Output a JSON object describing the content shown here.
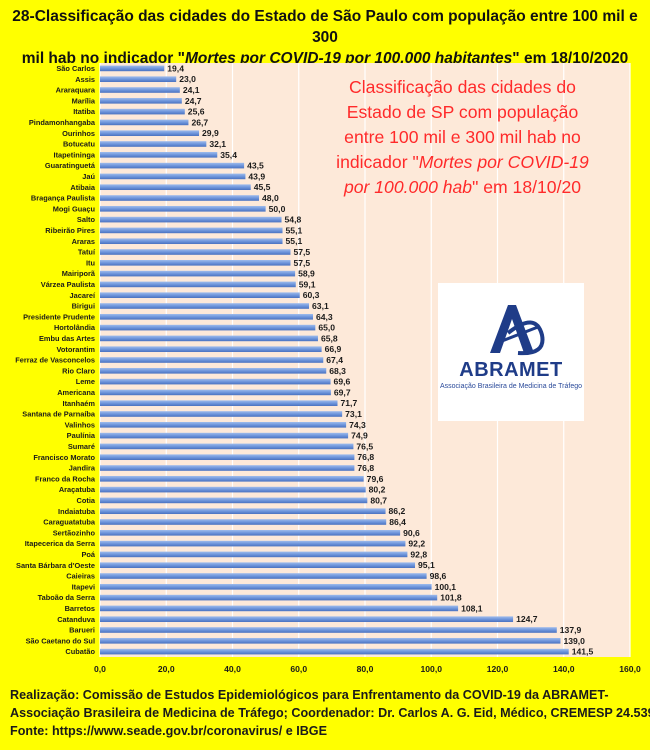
{
  "title_line1": "28-Classificação das cidades do Estado de São Paulo com população entre 100 mil e 300",
  "title_line2_pre": "mil hab no indicador \"",
  "title_line2_italic": "Mortes por COVID-19 por 100.000 habitantes",
  "title_line2_post": "\" em 18/10/2020",
  "annotation": {
    "line1": "Classificação das cidades do",
    "line2": "Estado de SP com população",
    "line3": "entre 100 mil e 300 mil hab  no",
    "line4_pre": "indicador \"",
    "line4_italic": "Mortes por COVID-19",
    "line5_italic": "por 100.000 hab",
    "line5_post": "\" em 18/10/20"
  },
  "logo": {
    "name": "ABRAMET",
    "subtitle": "Associação Brasileira de Medicina de Tráfego"
  },
  "footer": {
    "line1": "Realização: Comissão de Estudos Epidemiológicos para Enfrentamento da COVID-19 da ABRAMET-",
    "line2": "Associação Brasileira de Medicina de Tráfego;  Coordenador: Dr. Carlos A. G. Eid, Médico, CREMESP 24.539",
    "line3": "Fonte: https://www.seade.gov.br/coronavirus/  e IBGE"
  },
  "colors": {
    "background": "#ffff00",
    "plot_area": "#fde9d9",
    "bar": "#6f96dc",
    "annotation": "#ff2a2a"
  },
  "chart_data": {
    "type": "bar",
    "orientation": "horizontal",
    "xlim": [
      0,
      160
    ],
    "xticks": [
      "0,0",
      "20,0",
      "40,0",
      "60,0",
      "80,0",
      "100,0",
      "120,0",
      "140,0",
      "160,0"
    ],
    "grid": "vertical",
    "categories": [
      "São Carlos",
      "Assis",
      "Araraquara",
      "Marília",
      "Itatiba",
      "Pindamonhangaba",
      "Ourinhos",
      "Botucatu",
      "Itapetininga",
      "Guaratinguetá",
      "Jaú",
      "Atibaia",
      "Bragança Paulista",
      "Mogi Guaçu",
      "Salto",
      "Ribeirão Pires",
      "Araras",
      "Tatuí",
      "Itu",
      "Mairiporã",
      "Várzea Paulista",
      "Jacareí",
      "Birigui",
      "Presidente Prudente",
      "Hortolândia",
      "Embu das Artes",
      "Votorantim",
      "Ferraz de Vasconcelos",
      "Rio Claro",
      "Leme",
      "Americana",
      "Itanhaém",
      "Santana de Parnaíba",
      "Valinhos",
      "Paulínia",
      "Sumaré",
      "Francisco Morato",
      "Jandira",
      "Franco da Rocha",
      "Araçatuba",
      "Cotia",
      "Indaiatuba",
      "Caraguatatuba",
      "Sertãozinho",
      "Itapecerica da Serra",
      "Poá",
      "Santa Bárbara d'Oeste",
      "Caieiras",
      "Itapevi",
      "Taboão da Serra",
      "Barretos",
      "Catanduva",
      "Barueri",
      "São Caetano do Sul",
      "Cubatão"
    ],
    "values": [
      19.4,
      23.0,
      24.1,
      24.7,
      25.6,
      26.7,
      29.9,
      32.1,
      35.4,
      43.5,
      43.9,
      45.5,
      48.0,
      50.0,
      54.8,
      55.1,
      55.1,
      57.5,
      57.5,
      58.9,
      59.1,
      60.3,
      63.1,
      64.3,
      65.0,
      65.8,
      66.9,
      67.4,
      68.3,
      69.6,
      69.7,
      71.7,
      73.1,
      74.3,
      74.9,
      76.5,
      76.8,
      76.8,
      79.6,
      80.2,
      80.7,
      86.2,
      86.4,
      90.6,
      92.2,
      92.8,
      95.1,
      98.6,
      100.1,
      101.8,
      108.1,
      124.7,
      137.9,
      139.0,
      141.5
    ],
    "value_labels": [
      "19,4",
      "23,0",
      "24,1",
      "24,7",
      "25,6",
      "26,7",
      "29,9",
      "32,1",
      "35,4",
      "43,5",
      "43,9",
      "45,5",
      "48,0",
      "50,0",
      "54,8",
      "55,1",
      "55,1",
      "57,5",
      "57,5",
      "58,9",
      "59,1",
      "60,3",
      "63,1",
      "64,3",
      "65,0",
      "65,8",
      "66,9",
      "67,4",
      "68,3",
      "69,6",
      "69,7",
      "71,7",
      "73,1",
      "74,3",
      "74,9",
      "76,5",
      "76,8",
      "76,8",
      "79,6",
      "80,2",
      "80,7",
      "86,2",
      "86,4",
      "90,6",
      "92,2",
      "92,8",
      "95,1",
      "98,6",
      "100,1",
      "101,8",
      "108,1",
      "124,7",
      "137,9",
      "139,0",
      "141,5"
    ]
  }
}
